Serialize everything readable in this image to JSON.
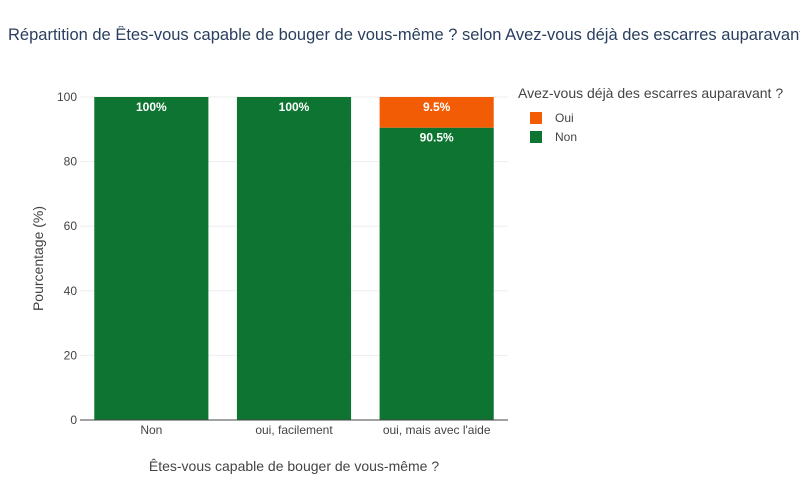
{
  "chart_data": {
    "type": "bar",
    "stacked": true,
    "title": "Répartition de Êtes-vous capable de bouger de vous-même ? selon Avez-vous déjà des escarres auparavant ? (%)",
    "xlabel": "Êtes-vous capable de bouger de vous-même ?",
    "ylabel": "Pourcentage (%)",
    "ylim": [
      0,
      100
    ],
    "yticks": [
      0,
      20,
      40,
      60,
      80,
      100
    ],
    "grid": true,
    "legend_position": "right",
    "legend_title": "Avez-vous déjà des escarres auparavant ?",
    "categories": [
      "Non",
      "oui, facilement",
      "oui, mais avec l'aide"
    ],
    "series": [
      {
        "name": "Non",
        "values": [
          100,
          100,
          90.5
        ],
        "labels": [
          "100%",
          "100%",
          "90.5%"
        ],
        "color": "#0d7531"
      },
      {
        "name": "Oui",
        "values": [
          0,
          0,
          9.5
        ],
        "labels": [
          "",
          "",
          "9.5%"
        ],
        "color": "#f25c05"
      }
    ],
    "legend_order": [
      "Oui",
      "Non"
    ]
  }
}
